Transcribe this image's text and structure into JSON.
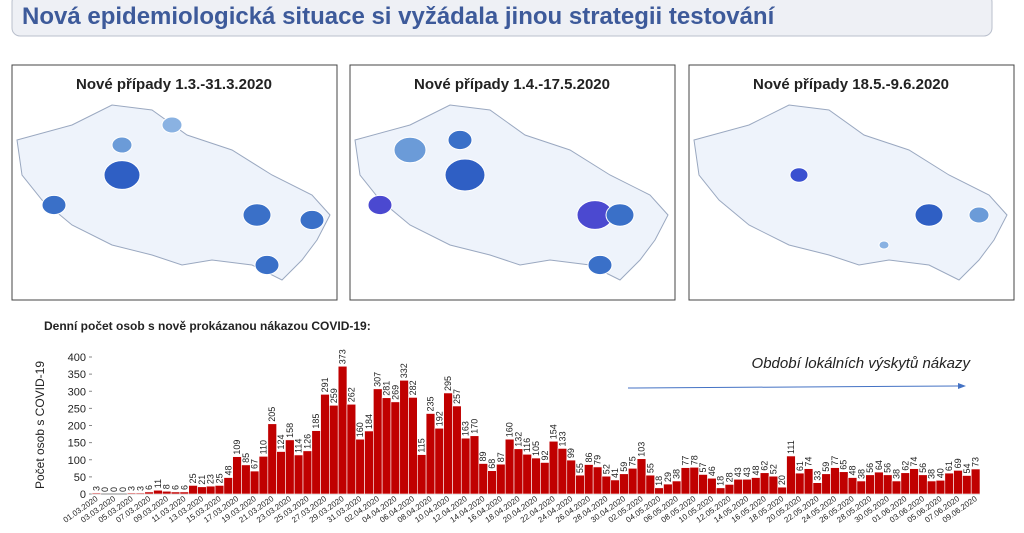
{
  "slide_title": "Nová epidemiologická situace si vyžádala jinou strategii testování",
  "maps": [
    {
      "title": "Nové případy 1.3.-31.3.2020"
    },
    {
      "title": "Nové případy 1.4.-17.5.2020"
    },
    {
      "title": "Nové případy 18.5.-9.6.2020"
    }
  ],
  "chart_data": {
    "type": "bar",
    "title": "Denní počet osob s nově prokázanou nákazou COVID-19:",
    "y_label": "Počet osob s COVID-19",
    "annotation": "Období lokálních výskytů nákazy",
    "color": "#c00000",
    "ylim": [
      0,
      400
    ],
    "yticks": [
      0,
      50,
      100,
      150,
      200,
      250,
      300,
      350,
      400
    ],
    "categories": [
      "01.03.2020",
      null,
      "03.03.2020",
      null,
      "05.03.2020",
      null,
      "07.03.2020",
      null,
      "09.03.2020",
      null,
      "11.03.2020",
      null,
      "13.03.2020",
      null,
      "15.03.2020",
      null,
      "17.03.2020",
      null,
      "19.03.2020",
      null,
      "21.03.2020",
      null,
      "23.03.2020",
      null,
      "25.03.2020",
      null,
      "27.03.2020",
      null,
      "29.03.2020",
      null,
      "31.03.2020",
      null,
      "02.04.2020",
      null,
      "04.04.2020",
      null,
      "06.04.2020",
      null,
      "08.04.2020",
      null,
      "10.04.2020",
      null,
      "12.04.2020",
      null,
      "14.04.2020",
      null,
      "16.04.2020",
      null,
      "18.04.2020",
      null,
      "20.04.2020",
      null,
      "22.04.2020",
      null,
      "24.04.2020",
      null,
      "26.04.2020",
      null,
      "28.04.2020",
      null,
      "30.04.2020",
      null,
      "02.05.2020",
      null,
      "04.05.2020",
      null,
      "06.05.2020",
      null,
      "08.05.2020",
      null,
      "10.05.2020",
      null,
      "12.05.2020",
      null,
      "14.05.2020",
      null,
      "16.05.2020",
      null,
      "18.05.2020",
      null,
      "20.05.2020",
      null,
      "22.05.2020",
      null,
      "24.05.2020",
      null,
      "26.05.2020",
      null,
      "28.05.2020",
      null,
      "30.05.2020",
      null,
      "01.06.2020",
      null,
      "03.06.2020",
      null,
      "05.06.2020",
      null,
      "07.06.2020",
      null,
      "09.06.2020"
    ],
    "values": [
      3,
      0,
      0,
      0,
      3,
      3,
      6,
      11,
      8,
      6,
      6,
      25,
      21,
      23,
      25,
      48,
      109,
      85,
      67,
      110,
      205,
      124,
      158,
      114,
      126,
      185,
      291,
      259,
      373,
      262,
      160,
      184,
      307,
      281,
      269,
      332,
      282,
      115,
      235,
      192,
      295,
      257,
      163,
      170,
      89,
      68,
      87,
      160,
      132,
      116,
      105,
      92,
      154,
      133,
      99,
      55,
      86,
      79,
      52,
      41,
      59,
      75,
      103,
      55,
      18,
      29,
      38,
      77,
      78,
      57,
      46,
      18,
      28,
      43,
      43,
      48,
      62,
      52,
      20,
      111,
      61,
      74,
      33,
      59,
      77,
      65,
      48,
      38,
      56,
      64,
      56,
      38,
      62,
      74,
      56,
      38,
      40,
      61,
      69,
      54,
      73
    ]
  }
}
